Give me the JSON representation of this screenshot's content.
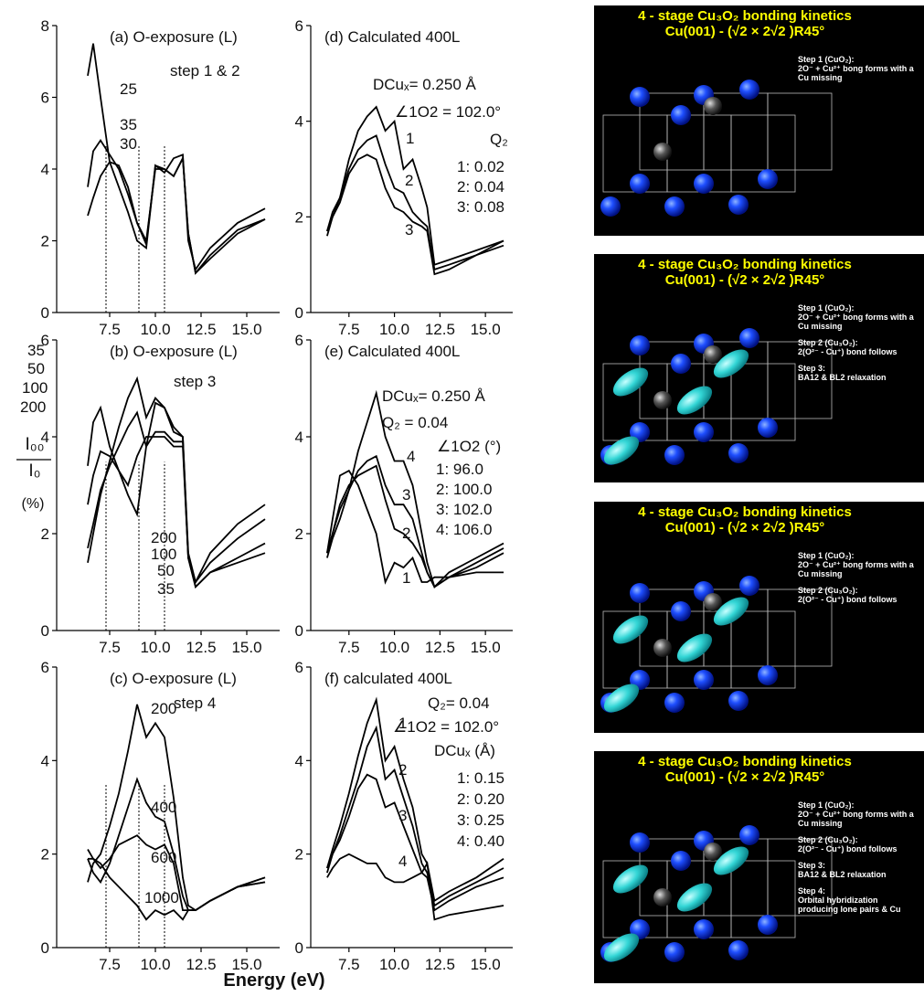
{
  "xlabel": "Energy (eV)",
  "ylabel": {
    "numerator": "I₀₀",
    "denominator": "I₀",
    "unit": "(%)"
  },
  "chart_data": [
    {
      "type": "line",
      "title": "(a) O-exposure (L)",
      "annotations": [
        "step 1 & 2",
        "25",
        "35",
        "30"
      ],
      "x": [
        6.3,
        6.6,
        7.0,
        7.5,
        8.0,
        8.5,
        9.0,
        9.5,
        10.0,
        10.5,
        11.0,
        11.5,
        11.8,
        12.2,
        13,
        14.5,
        16
      ],
      "xlim": [
        4.6,
        16.8
      ],
      "xticks": [
        7.5,
        {
          "value": 10,
          "label": "10.0"
        },
        12.5,
        {
          "value": 15,
          "label": "15.0"
        }
      ],
      "ylim": [
        0,
        8
      ],
      "yticks": [
        0,
        2,
        4,
        6,
        8
      ],
      "vlines": [
        7.3,
        9.1,
        10.5
      ],
      "grid": false,
      "series": [
        {
          "color": "#000",
          "values": [
            6.6,
            7.5,
            6.0,
            4.2,
            3.5,
            2.8,
            2.0,
            1.8,
            4.1,
            3.9,
            4.3,
            4.4,
            2.0,
            1.2,
            1.8,
            2.5,
            2.9
          ]
        },
        {
          "color": "#000",
          "values": [
            3.5,
            4.5,
            4.8,
            4.4,
            4.0,
            3.3,
            2.5,
            2.0,
            4.0,
            4.0,
            3.8,
            4.3,
            2.2,
            1.1,
            1.6,
            2.3,
            2.6
          ]
        },
        {
          "color": "#000",
          "values": [
            2.7,
            3.2,
            3.8,
            4.2,
            4.1,
            3.5,
            2.5,
            1.9,
            4.1,
            4.0,
            3.8,
            4.3,
            2.2,
            1.1,
            1.5,
            2.2,
            2.6
          ]
        }
      ]
    },
    {
      "type": "line",
      "title": "(b) O-exposure (L)",
      "annotations": [
        "step 3",
        "35",
        "50",
        "100",
        "200",
        "200",
        "100",
        "50",
        "35"
      ],
      "x": [
        6.3,
        6.6,
        7.0,
        7.5,
        8.0,
        8.5,
        9.0,
        9.5,
        10.0,
        10.5,
        11.0,
        11.5,
        11.8,
        12.2,
        13,
        14.5,
        16
      ],
      "xlim": [
        4.6,
        16.8
      ],
      "xticks": [
        7.5,
        {
          "value": 10,
          "label": "10.0"
        },
        12.5,
        {
          "value": 15,
          "label": "15.0"
        }
      ],
      "ylim": [
        0,
        6
      ],
      "yticks": [
        0,
        2,
        4,
        6
      ],
      "vlines": [
        7.3,
        9.1,
        10.5
      ],
      "grid": false,
      "series": [
        {
          "color": "#000",
          "values": [
            1.4,
            2.0,
            2.8,
            3.5,
            4.2,
            4.8,
            5.2,
            4.4,
            4.8,
            4.6,
            4.2,
            4.0,
            1.5,
            0.9,
            1.2,
            1.4,
            1.6
          ]
        },
        {
          "color": "#000",
          "values": [
            1.7,
            2.2,
            2.9,
            3.4,
            3.8,
            4.2,
            4.5,
            3.8,
            4.1,
            4.1,
            3.9,
            3.9,
            1.5,
            0.9,
            1.2,
            1.5,
            1.8
          ]
        },
        {
          "color": "#000",
          "values": [
            2.6,
            3.2,
            3.7,
            3.6,
            3.3,
            3.0,
            3.6,
            4.0,
            4.0,
            4.0,
            3.8,
            3.8,
            1.5,
            1.0,
            1.4,
            1.9,
            2.3
          ]
        },
        {
          "color": "#000",
          "values": [
            3.4,
            4.3,
            4.6,
            3.8,
            3.3,
            2.8,
            2.4,
            3.8,
            4.7,
            4.6,
            4.1,
            4.0,
            1.6,
            1.0,
            1.6,
            2.2,
            2.6
          ]
        }
      ]
    },
    {
      "type": "line",
      "title": "(c) O-exposure (L)",
      "annotations": [
        "step 4",
        "200",
        "400",
        "600",
        "1000"
      ],
      "x": [
        6.3,
        6.6,
        7.0,
        7.5,
        8.0,
        8.5,
        9.0,
        9.5,
        10.0,
        10.5,
        11.0,
        11.5,
        11.8,
        12.2,
        13,
        14.5,
        16
      ],
      "xlim": [
        4.6,
        16.8
      ],
      "xticks": [
        7.5,
        {
          "value": 10,
          "label": "10.0"
        },
        12.5,
        {
          "value": 15,
          "label": "15.0"
        }
      ],
      "ylim": [
        0,
        6
      ],
      "yticks": [
        0,
        2,
        4,
        6
      ],
      "vlines": [
        7.3,
        9.1,
        10.5
      ],
      "grid": false,
      "series": [
        {
          "color": "#000",
          "values": [
            1.4,
            1.8,
            2.0,
            2.6,
            3.3,
            4.2,
            5.2,
            4.5,
            4.8,
            4.5,
            3.2,
            1.5,
            0.9,
            0.8,
            1.0,
            1.3,
            1.5
          ]
        },
        {
          "color": "#000",
          "values": [
            1.9,
            1.6,
            1.4,
            1.8,
            2.4,
            3.0,
            3.6,
            3.1,
            2.8,
            2.7,
            2.0,
            1.1,
            0.8,
            0.8,
            1.0,
            1.3,
            1.5
          ]
        },
        {
          "color": "#000",
          "values": [
            2.1,
            1.9,
            1.7,
            1.9,
            2.2,
            2.3,
            2.4,
            2.2,
            2.1,
            2.2,
            1.8,
            0.8,
            0.8,
            0.8,
            1.0,
            1.3,
            1.4
          ]
        },
        {
          "color": "#000",
          "values": [
            1.9,
            1.9,
            1.8,
            1.5,
            1.3,
            1.1,
            0.9,
            0.6,
            0.8,
            0.7,
            0.8,
            0.6,
            0.8,
            0.8,
            1.0,
            1.3,
            1.4
          ]
        }
      ]
    },
    {
      "type": "line",
      "title": "(d) Calculated 400L",
      "annotations": [
        "DCuₓ= 0.250 Å",
        "∠1O2 = 102.0°",
        "1",
        "2",
        "3",
        "Q₂",
        "1: 0.02",
        "2: 0.04",
        "3: 0.08"
      ],
      "x": [
        6.3,
        6.6,
        7.0,
        7.5,
        8.0,
        8.5,
        9.0,
        9.5,
        10.0,
        10.5,
        11.0,
        11.5,
        11.8,
        12.2,
        13,
        14.5,
        16
      ],
      "xlim": [
        5.4,
        16.5
      ],
      "xticks": [
        7.5,
        {
          "value": 10,
          "label": "10.0"
        },
        12.5,
        {
          "value": 15,
          "label": "15.0"
        }
      ],
      "ylim": [
        0,
        6
      ],
      "yticks": [
        0,
        2,
        4,
        6
      ],
      "grid": false,
      "series": [
        {
          "color": "#000",
          "values": [
            1.7,
            2.1,
            2.4,
            3.2,
            3.8,
            4.1,
            4.3,
            3.8,
            4.0,
            3.0,
            3.2,
            2.6,
            2.2,
            1.0,
            1.1,
            1.3,
            1.5
          ]
        },
        {
          "color": "#000",
          "values": [
            1.6,
            2.0,
            2.4,
            3.0,
            3.4,
            3.6,
            3.7,
            3.1,
            2.6,
            2.5,
            2.1,
            1.9,
            1.8,
            0.9,
            1.0,
            1.2,
            1.5
          ]
        },
        {
          "color": "#000",
          "values": [
            1.7,
            2.0,
            2.3,
            2.9,
            3.2,
            3.3,
            3.2,
            2.6,
            2.2,
            2.1,
            1.9,
            1.8,
            1.7,
            0.8,
            0.9,
            1.2,
            1.4
          ]
        }
      ]
    },
    {
      "type": "line",
      "title": "(e) Calculated 400L",
      "annotations": [
        "DCuₓ= 0.250 Å",
        "Q₂ = 0.04",
        "∠1O2 (°)",
        "1: 96.0",
        "2: 100.0",
        "3: 102.0",
        "4: 106.0",
        "4",
        "3",
        "2",
        "1"
      ],
      "x": [
        6.3,
        6.6,
        7.0,
        7.5,
        8.0,
        8.5,
        9.0,
        9.5,
        10.0,
        10.5,
        11.0,
        11.5,
        11.8,
        12.2,
        13,
        14.5,
        16
      ],
      "xlim": [
        5.4,
        16.5
      ],
      "xticks": [
        7.5,
        {
          "value": 10,
          "label": "10.0"
        },
        12.5,
        {
          "value": 15,
          "label": "15.0"
        }
      ],
      "ylim": [
        0,
        6
      ],
      "yticks": [
        0,
        2,
        4,
        6
      ],
      "grid": false,
      "series": [
        {
          "color": "#000",
          "values": [
            1.6,
            2.3,
            3.2,
            3.3,
            3.0,
            2.5,
            2.0,
            1.0,
            1.4,
            1.3,
            1.5,
            1.0,
            1.0,
            1.1,
            1.1,
            1.2,
            1.2
          ]
        },
        {
          "color": "#000",
          "values": [
            1.6,
            2.0,
            2.6,
            3.0,
            3.2,
            3.3,
            3.4,
            2.7,
            2.1,
            2.0,
            1.8,
            1.5,
            1.2,
            0.9,
            1.1,
            1.4,
            1.7
          ]
        },
        {
          "color": "#000",
          "values": [
            1.6,
            2.0,
            2.5,
            2.9,
            3.3,
            3.5,
            3.6,
            3.0,
            2.6,
            2.6,
            2.3,
            1.6,
            1.2,
            0.9,
            1.1,
            1.3,
            1.6
          ]
        },
        {
          "color": "#000",
          "values": [
            1.5,
            1.9,
            2.3,
            2.9,
            3.7,
            4.3,
            4.9,
            4.0,
            3.5,
            3.5,
            3.0,
            2.0,
            1.4,
            0.9,
            1.2,
            1.5,
            1.8
          ]
        }
      ]
    },
    {
      "type": "line",
      "title": "(f) calculated 400L",
      "annotations": [
        "Q₂= 0.04",
        "∠1O2 = 102.0°",
        "DCuₓ (Å)",
        "1: 0.15",
        "2: 0.20",
        "3: 0.25",
        "4: 0.40",
        "1",
        "2",
        "3",
        "4"
      ],
      "x": [
        6.3,
        6.6,
        7.0,
        7.5,
        8.0,
        8.5,
        9.0,
        9.5,
        10.0,
        10.5,
        11.0,
        11.5,
        11.8,
        12.2,
        13,
        14.5,
        16
      ],
      "xlim": [
        5.4,
        16.5
      ],
      "xticks": [
        7.5,
        {
          "value": 10,
          "label": "10.0"
        },
        12.5,
        {
          "value": 15,
          "label": "15.0"
        }
      ],
      "ylim": [
        0,
        6
      ],
      "yticks": [
        0,
        2,
        4,
        6
      ],
      "grid": false,
      "series": [
        {
          "color": "#000",
          "values": [
            1.7,
            2.1,
            2.6,
            3.3,
            4.1,
            4.8,
            5.3,
            4.0,
            4.3,
            3.6,
            3.0,
            2.0,
            1.8,
            1.0,
            1.2,
            1.5,
            1.9
          ]
        },
        {
          "color": "#000",
          "values": [
            1.6,
            2.0,
            2.4,
            3.0,
            3.6,
            4.3,
            4.7,
            3.6,
            3.8,
            3.2,
            2.6,
            1.8,
            1.6,
            0.9,
            1.1,
            1.4,
            1.7
          ]
        },
        {
          "color": "#000",
          "values": [
            1.7,
            2.0,
            2.3,
            2.8,
            3.4,
            3.7,
            3.6,
            3.0,
            3.1,
            2.6,
            2.1,
            1.6,
            1.5,
            0.8,
            1.0,
            1.3,
            1.5
          ]
        },
        {
          "color": "#000",
          "values": [
            1.5,
            1.7,
            1.9,
            2.0,
            1.9,
            1.8,
            1.8,
            1.5,
            1.4,
            1.4,
            1.5,
            1.6,
            1.8,
            0.6,
            0.7,
            0.8,
            0.9
          ]
        }
      ]
    }
  ],
  "slides": [
    {
      "title": [
        "4 - stage Cu₃O₂ bonding kinetics",
        "Cu(001) - (√2 × 2√2 )R45°"
      ],
      "lines": [
        "Step 1 (CuO₂):",
        "2O⁻ + Cu²⁺ bong forms with a",
        "Cu missing"
      ]
    },
    {
      "title": [
        "4 - stage Cu₃O₂ bonding kinetics",
        "Cu(001) - (√2 × 2√2 )R45°"
      ],
      "lines": [
        "Step 1 (CuO₂):",
        "2O⁻ + Cu²⁺ bong forms with a",
        "Cu missing",
        "Step 2 (Cu₃O₂):",
        "2(O²⁻ - Cu⁺) bond follows",
        "Step 3:",
        "BA12 & BL2 relaxation"
      ]
    },
    {
      "title": [
        "4 - stage Cu₃O₂ bonding kinetics",
        "Cu(001) - (√2 × 2√2 )R45°"
      ],
      "lines": [
        "Step 1 (CuO₂):",
        "2O⁻ + Cu²⁺ bong forms with a",
        "Cu missing",
        "Step 2 (Cu₃O₂):",
        "2(O²⁻ - Cu⁺) bond follows"
      ]
    },
    {
      "title": [
        "4 - stage Cu₃O₂ bonding kinetics",
        "Cu(001) - (√2 × 2√2 )R45°"
      ],
      "lines": [
        "Step 1 (CuO₂):",
        "2O⁻ + Cu²⁺ bong forms with a",
        "Cu missing",
        "Step 2 (Cu₃O₂):",
        "2(O²⁻ - Cu⁺) bond follows",
        "Step 3:",
        "BA12 & BL2 relaxation",
        "Step 4:",
        "Orbital hybridization",
        "producing lone pairs & Cu"
      ]
    }
  ]
}
